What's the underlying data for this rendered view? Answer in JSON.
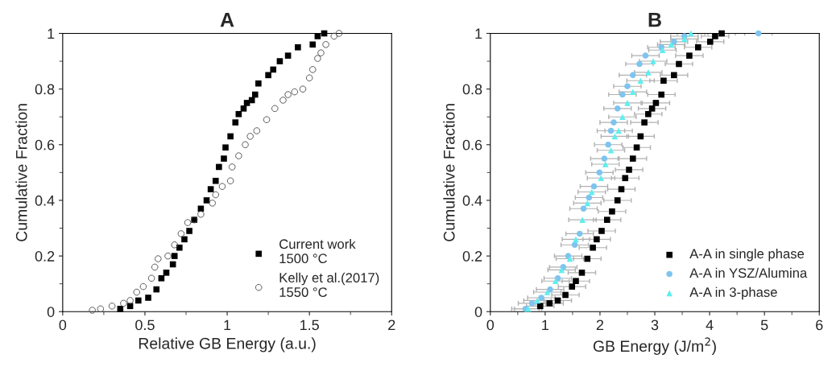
{
  "chart_data": [
    {
      "type": "scatter",
      "title": "A",
      "xlabel": "Relative GB Energy (a.u.)",
      "ylabel": "Cumulative Fraction",
      "xlim": [
        0,
        2
      ],
      "xticks": [
        0,
        0.5,
        1,
        1.5,
        2
      ],
      "ylim": [
        0,
        1
      ],
      "yticks": [
        0,
        0.2,
        0.4,
        0.6,
        0.8,
        1
      ],
      "legend": "bottom right",
      "grid": false,
      "series": [
        {
          "name": "Current work\n1500 °C",
          "color": "#000000",
          "marker": "square",
          "x": [
            0.35,
            0.41,
            0.46,
            0.52,
            0.57,
            0.6,
            0.63,
            0.67,
            0.68,
            0.71,
            0.74,
            0.77,
            0.8,
            0.84,
            0.875,
            0.9,
            0.93,
            0.95,
            0.98,
            0.99,
            1.02,
            1.05,
            1.07,
            1.1,
            1.12,
            1.15,
            1.17,
            1.19,
            1.25,
            1.28,
            1.32,
            1.37,
            1.43,
            1.52,
            1.55,
            1.59
          ],
          "values": [
            0.01,
            0.02,
            0.04,
            0.05,
            0.08,
            0.12,
            0.14,
            0.17,
            0.2,
            0.23,
            0.26,
            0.29,
            0.33,
            0.37,
            0.4,
            0.44,
            0.47,
            0.52,
            0.55,
            0.59,
            0.63,
            0.68,
            0.71,
            0.73,
            0.75,
            0.76,
            0.78,
            0.82,
            0.85,
            0.87,
            0.9,
            0.92,
            0.95,
            0.96,
            0.99,
            1.0
          ]
        },
        {
          "name": "Kelly et al.(2017)\n1550 °C",
          "color": "#555555",
          "marker": "circle",
          "x": [
            0.18,
            0.23,
            0.3,
            0.37,
            0.41,
            0.45,
            0.49,
            0.54,
            0.56,
            0.58,
            0.64,
            0.68,
            0.72,
            0.76,
            0.8,
            0.84,
            0.91,
            0.93,
            0.97,
            1.02,
            1.03,
            1.07,
            1.11,
            1.14,
            1.18,
            1.24,
            1.29,
            1.34,
            1.37,
            1.41,
            1.46,
            1.5,
            1.52,
            1.55,
            1.57,
            1.6,
            1.65,
            1.68
          ],
          "values": [
            0.005,
            0.01,
            0.02,
            0.03,
            0.04,
            0.07,
            0.09,
            0.12,
            0.16,
            0.19,
            0.2,
            0.24,
            0.28,
            0.32,
            0.33,
            0.35,
            0.39,
            0.42,
            0.45,
            0.47,
            0.52,
            0.56,
            0.6,
            0.63,
            0.65,
            0.69,
            0.73,
            0.76,
            0.78,
            0.79,
            0.8,
            0.84,
            0.87,
            0.91,
            0.93,
            0.96,
            0.99,
            1.0
          ]
        }
      ]
    },
    {
      "type": "scatter",
      "title": "B",
      "xlabel": "GB Energy (J/m$^{2}$)",
      "ylabel": "Cumulative Fraction",
      "xlim": [
        0,
        6
      ],
      "xticks": [
        0,
        1,
        2,
        3,
        4,
        5,
        6
      ],
      "ylim": [
        0,
        1
      ],
      "yticks": [
        0,
        0.2,
        0.4,
        0.6,
        0.8,
        1
      ],
      "legend": "bottom right",
      "grid": false,
      "series": [
        {
          "name": "A-A in single phase",
          "color": "#000000",
          "marker": "square",
          "x": [
            0.91,
            1.08,
            1.23,
            1.37,
            1.49,
            1.56,
            1.67,
            1.77,
            1.87,
            1.94,
            2.03,
            2.13,
            2.22,
            2.32,
            2.39,
            2.46,
            2.53,
            2.6,
            2.67,
            2.74,
            2.81,
            2.88,
            2.95,
            3.02,
            3.12,
            3.16,
            3.35,
            3.44,
            3.63,
            3.79,
            4.01,
            4.1,
            4.22
          ],
          "values": [
            0.02,
            0.03,
            0.04,
            0.06,
            0.09,
            0.11,
            0.14,
            0.19,
            0.23,
            0.26,
            0.29,
            0.33,
            0.36,
            0.4,
            0.44,
            0.48,
            0.51,
            0.55,
            0.59,
            0.63,
            0.68,
            0.71,
            0.73,
            0.75,
            0.78,
            0.83,
            0.85,
            0.89,
            0.92,
            0.95,
            0.97,
            0.99,
            1.0
          ],
          "xerrors": [
            0.25,
            0.25,
            0.25,
            0.25,
            0.25,
            0.25,
            0.25,
            0.25,
            0.25,
            0.25,
            0.25,
            0.25,
            0.25,
            0.25,
            0.25,
            0.25,
            0.25,
            0.25,
            0.25,
            0.25,
            0.25,
            0.25,
            0.25,
            0.25,
            0.25,
            0.25,
            0.25,
            0.25,
            0.25,
            0.25,
            0.25,
            0.25,
            0.25
          ]
        },
        {
          "name": "A-A in YSZ/Alumina",
          "color": "#7ec4ee",
          "marker": "circle",
          "x": [
            0.64,
            0.76,
            0.93,
            1.09,
            1.23,
            1.33,
            1.42,
            1.54,
            1.63,
            1.7,
            1.8,
            1.89,
            1.99,
            2.08,
            2.15,
            2.2,
            2.25,
            2.32,
            2.41,
            2.5,
            2.6,
            2.72,
            2.83,
            3.12,
            3.35,
            3.54,
            4.89
          ],
          "values": [
            0.01,
            0.03,
            0.05,
            0.08,
            0.12,
            0.16,
            0.2,
            0.24,
            0.28,
            0.37,
            0.41,
            0.45,
            0.5,
            0.55,
            0.6,
            0.65,
            0.68,
            0.73,
            0.78,
            0.81,
            0.85,
            0.89,
            0.92,
            0.95,
            0.97,
            0.99,
            1.0
          ],
          "xerrors": [
            0.25,
            0.25,
            0.25,
            0.25,
            0.25,
            0.25,
            0.25,
            0.25,
            0.25,
            0.25,
            0.25,
            0.25,
            0.25,
            0.25,
            0.25,
            0.25,
            0.25,
            0.25,
            0.25,
            0.25,
            0.25,
            0.25,
            0.25,
            0.25,
            0.25,
            0.25,
            0.25
          ]
        },
        {
          "name": "A-A in 3-phase",
          "color": "#5eeeee",
          "marker": "triangle",
          "x": [
            0.69,
            0.86,
            1.04,
            1.19,
            1.3,
            1.45,
            1.56,
            1.68,
            1.77,
            1.85,
            2.02,
            2.1,
            2.2,
            2.27,
            2.34,
            2.41,
            2.5,
            2.6,
            2.74,
            2.88,
            2.97,
            3.14,
            3.3,
            3.54,
            3.66
          ],
          "values": [
            0.01,
            0.04,
            0.07,
            0.11,
            0.15,
            0.19,
            0.26,
            0.33,
            0.39,
            0.43,
            0.48,
            0.53,
            0.58,
            0.63,
            0.65,
            0.7,
            0.75,
            0.79,
            0.83,
            0.86,
            0.9,
            0.94,
            0.96,
            0.98,
            1.0
          ],
          "xerrors": [
            0.25,
            0.25,
            0.25,
            0.25,
            0.25,
            0.25,
            0.25,
            0.25,
            0.25,
            0.25,
            0.25,
            0.25,
            0.25,
            0.25,
            0.25,
            0.25,
            0.25,
            0.25,
            0.25,
            0.25,
            0.25,
            0.25,
            0.25,
            0.25,
            0.25
          ]
        }
      ]
    }
  ]
}
